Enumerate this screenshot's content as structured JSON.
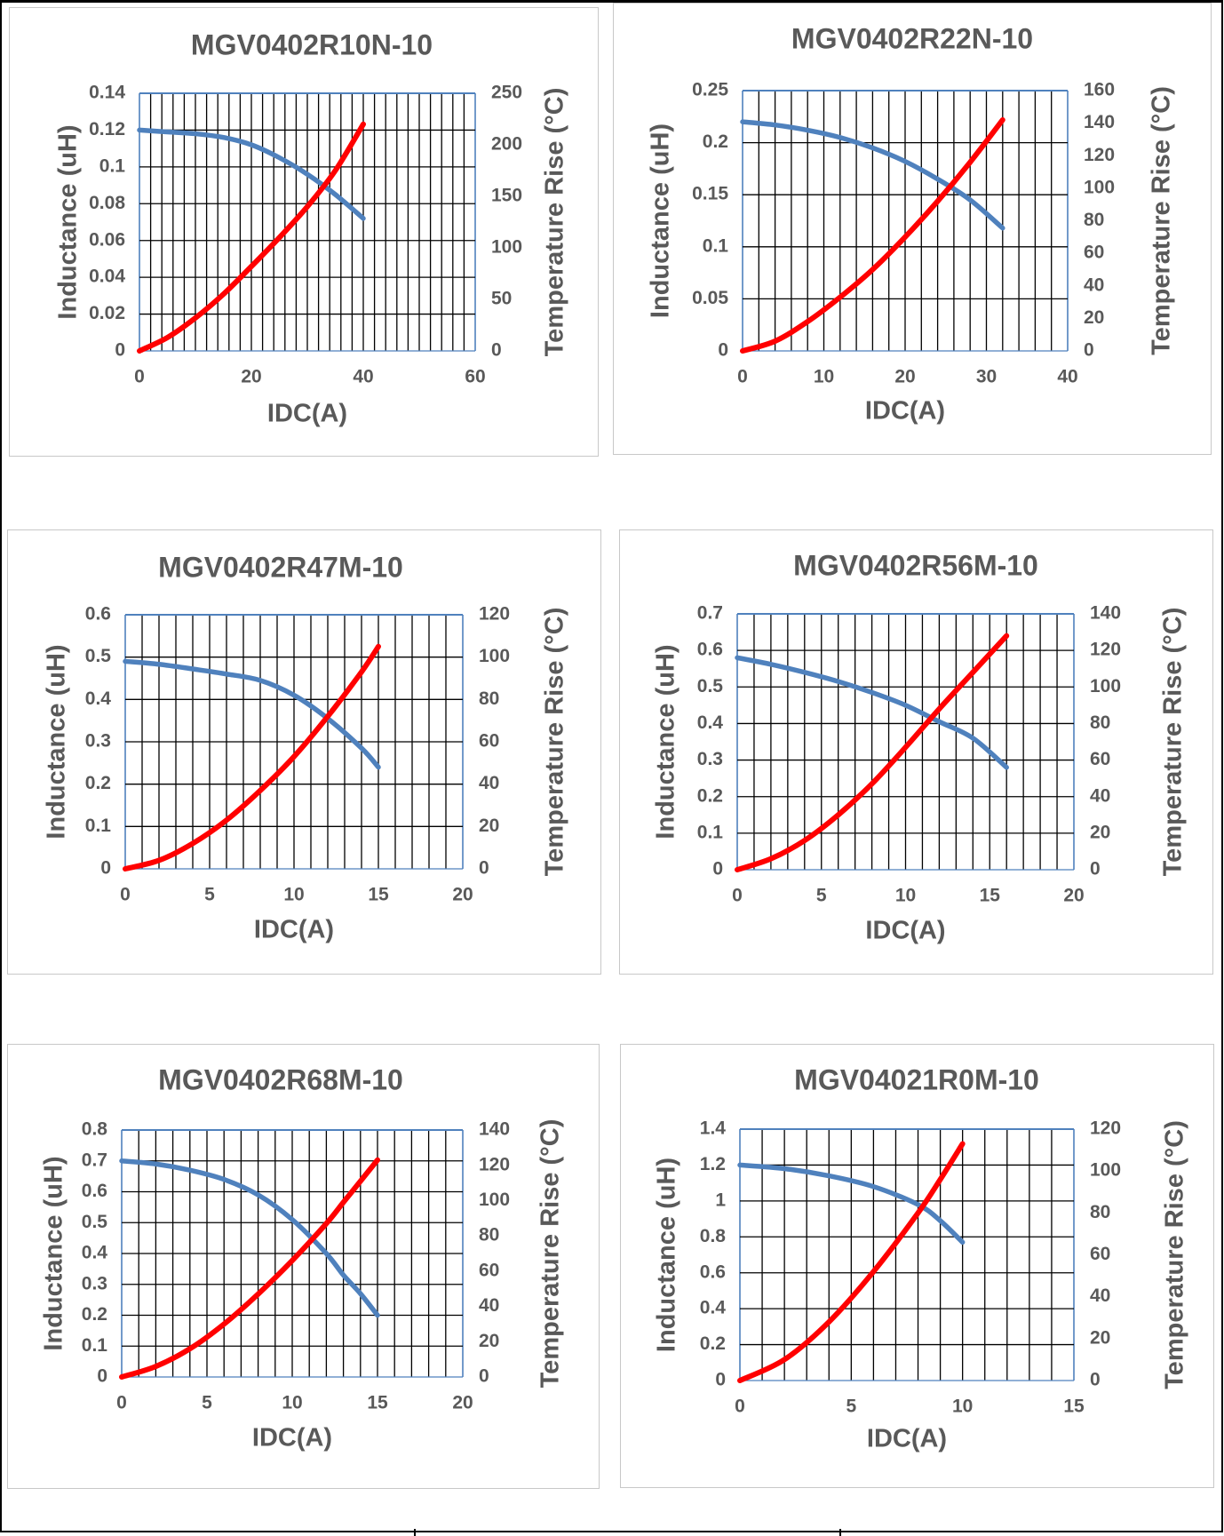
{
  "colors": {
    "inductance_line": "#4f81bd",
    "temperature_line": "#ff0000",
    "grid_minor": "#000000",
    "grid_major": "#4f81bd",
    "text": "#595959"
  },
  "labels": {
    "xlabel": "IDC(A)",
    "ylabel_left": "Inductance (uH)",
    "ylabel_right": "Temperature Rise (°C)"
  },
  "chart_data": [
    {
      "type": "line",
      "title": "MGV0402R10N-10",
      "xlabel": "IDC(A)",
      "ylabel": "Inductance (uH)",
      "y2label": "Temperature Rise (°C)",
      "xlim": [
        0,
        60
      ],
      "xticks": [
        0,
        20,
        40,
        60
      ],
      "xgrid_step": 2,
      "ylim": [
        0,
        0.14
      ],
      "yticks": [
        "0",
        "0.02",
        "0.04",
        "0.06",
        "0.08",
        "0.1",
        "0.12",
        "0.14"
      ],
      "y2lim": [
        0,
        250
      ],
      "y2ticks": [
        "0",
        "50",
        "100",
        "150",
        "200",
        "250"
      ],
      "series": [
        {
          "axis": "left",
          "x": [
            0,
            5,
            10,
            15,
            20,
            25,
            30,
            35,
            40
          ],
          "values": [
            0.12,
            0.119,
            0.118,
            0.116,
            0.112,
            0.105,
            0.096,
            0.085,
            0.072
          ]
        },
        {
          "axis": "right",
          "x": [
            0,
            5,
            10,
            15,
            20,
            25,
            30,
            35,
            40
          ],
          "values": [
            0,
            13,
            32,
            55,
            82,
            110,
            140,
            175,
            220
          ]
        }
      ]
    },
    {
      "type": "line",
      "title": "MGV0402R22N-10",
      "xlabel": "IDC(A)",
      "ylabel": "Inductance (uH)",
      "y2label": "Temperature Rise (°C)",
      "xlim": [
        0,
        40
      ],
      "xticks": [
        0,
        10,
        20,
        30,
        40
      ],
      "xgrid_step": 2,
      "ylim": [
        0,
        0.25
      ],
      "yticks": [
        "0",
        "0.05",
        "0.1",
        "0.15",
        "0.2",
        "0.25"
      ],
      "y2lim": [
        0,
        160
      ],
      "y2ticks": [
        "0",
        "20",
        "40",
        "60",
        "80",
        "100",
        "120",
        "140",
        "160"
      ],
      "series": [
        {
          "axis": "left",
          "x": [
            0,
            4,
            8,
            12,
            16,
            20,
            24,
            28,
            32
          ],
          "values": [
            0.22,
            0.217,
            0.212,
            0.205,
            0.195,
            0.182,
            0.165,
            0.145,
            0.118
          ]
        },
        {
          "axis": "right",
          "x": [
            0,
            4,
            8,
            12,
            16,
            20,
            24,
            28,
            32
          ],
          "values": [
            0,
            6,
            18,
            33,
            50,
            70,
            92,
            116,
            142
          ]
        }
      ]
    },
    {
      "type": "line",
      "title": "MGV0402R47M-10",
      "xlabel": "IDC(A)",
      "ylabel": "Inductance (uH)",
      "y2label": "Temperature Rise (°C)",
      "xlim": [
        0,
        20
      ],
      "xticks": [
        0,
        5,
        10,
        15,
        20
      ],
      "xgrid_step": 1,
      "ylim": [
        0,
        0.6
      ],
      "yticks": [
        "0",
        "0.1",
        "0.2",
        "0.3",
        "0.4",
        "0.5",
        "0.6"
      ],
      "y2lim": [
        0,
        120
      ],
      "y2ticks": [
        "0",
        "20",
        "40",
        "60",
        "80",
        "100",
        "120"
      ],
      "series": [
        {
          "axis": "left",
          "x": [
            0,
            2,
            4,
            6,
            8,
            10,
            12,
            14,
            15
          ],
          "values": [
            0.49,
            0.483,
            0.472,
            0.46,
            0.445,
            0.41,
            0.355,
            0.285,
            0.24
          ]
        },
        {
          "axis": "right",
          "x": [
            0,
            2,
            4,
            6,
            8,
            10,
            12,
            14,
            15
          ],
          "values": [
            0,
            4,
            12,
            23,
            37,
            53,
            72,
            93,
            105
          ]
        }
      ]
    },
    {
      "type": "line",
      "title": "MGV0402R56M-10",
      "xlabel": "IDC(A)",
      "ylabel": "Inductance (uH)",
      "y2label": "Temperature Rise (°C)",
      "xlim": [
        0,
        20
      ],
      "xticks": [
        0,
        5,
        10,
        15,
        20
      ],
      "xgrid_step": 1,
      "ylim": [
        0,
        0.7
      ],
      "yticks": [
        "0",
        "0.1",
        "0.2",
        "0.3",
        "0.4",
        "0.5",
        "0.6",
        "0.7"
      ],
      "y2lim": [
        0,
        140
      ],
      "y2ticks": [
        "0",
        "20",
        "40",
        "60",
        "80",
        "100",
        "120",
        "140"
      ],
      "series": [
        {
          "axis": "left",
          "x": [
            0,
            2,
            4,
            6,
            8,
            10,
            12,
            14,
            16
          ],
          "values": [
            0.58,
            0.562,
            0.54,
            0.515,
            0.485,
            0.45,
            0.405,
            0.36,
            0.28
          ]
        },
        {
          "axis": "right",
          "x": [
            0,
            2,
            4,
            6,
            8,
            10,
            12,
            14,
            16
          ],
          "values": [
            0,
            6,
            16,
            30,
            47,
            67,
            88,
            108,
            128
          ]
        }
      ]
    },
    {
      "type": "line",
      "title": "MGV0402R68M-10",
      "xlabel": "IDC(A)",
      "ylabel": "Inductance (uH)",
      "y2label": "Temperature Rise (°C)",
      "xlim": [
        0,
        20
      ],
      "xticks": [
        0,
        5,
        10,
        15,
        20
      ],
      "xgrid_step": 1,
      "ylim": [
        0,
        0.8
      ],
      "yticks": [
        "0",
        "0.1",
        "0.2",
        "0.3",
        "0.4",
        "0.5",
        "0.6",
        "0.7",
        "0.8"
      ],
      "y2lim": [
        0,
        140
      ],
      "y2ticks": [
        "0",
        "20",
        "40",
        "60",
        "80",
        "100",
        "120",
        "140"
      ],
      "series": [
        {
          "axis": "left",
          "x": [
            0,
            2,
            4,
            6,
            8,
            10,
            12,
            13,
            14,
            15
          ],
          "values": [
            0.7,
            0.69,
            0.67,
            0.64,
            0.59,
            0.51,
            0.4,
            0.33,
            0.27,
            0.2
          ]
        },
        {
          "axis": "right",
          "x": [
            0,
            2,
            4,
            6,
            8,
            10,
            12,
            13,
            14,
            15
          ],
          "values": [
            0,
            6,
            16,
            30,
            47,
            66,
            87,
            99,
            111,
            123
          ]
        }
      ]
    },
    {
      "type": "line",
      "title": "MGV04021R0M-10",
      "xlabel": "IDC(A)",
      "ylabel": "Inductance (uH)",
      "y2label": "Temperature Rise (°C)",
      "xlim": [
        0,
        15
      ],
      "xticks": [
        0,
        5,
        10,
        15
      ],
      "xgrid_step": 1,
      "ylim": [
        0,
        1.4
      ],
      "yticks": [
        "0",
        "0.2",
        "0.4",
        "0.6",
        "0.8",
        "1",
        "1.2",
        "1.4"
      ],
      "y2lim": [
        0,
        120
      ],
      "y2ticks": [
        "0",
        "20",
        "40",
        "60",
        "80",
        "100",
        "120"
      ],
      "series": [
        {
          "axis": "left",
          "x": [
            0,
            2,
            4,
            6,
            8,
            9,
            10
          ],
          "values": [
            1.2,
            1.18,
            1.14,
            1.08,
            0.98,
            0.89,
            0.77
          ]
        },
        {
          "axis": "right",
          "x": [
            0,
            2,
            4,
            6,
            8,
            9,
            10
          ],
          "values": [
            0,
            10,
            28,
            52,
            80,
            96,
            113
          ]
        }
      ]
    }
  ]
}
